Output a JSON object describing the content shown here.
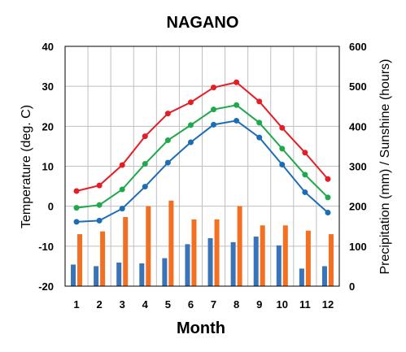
{
  "chart_data": {
    "type": "line",
    "title": "NAGANO",
    "xlabel": "Month",
    "ylabel_left": "Temperature (deg. C)",
    "ylabel_right": "Precipitation (mm) / Sunshine (hours)",
    "categories": [
      "1",
      "2",
      "3",
      "4",
      "5",
      "6",
      "7",
      "8",
      "9",
      "10",
      "11",
      "12"
    ],
    "ylim_left": [
      -20,
      40
    ],
    "yticks_left": [
      -20,
      -10,
      0,
      10,
      20,
      30,
      40
    ],
    "ylim_right": [
      0,
      600
    ],
    "yticks_right": [
      0,
      100,
      200,
      300,
      400,
      500,
      600
    ],
    "grid": true,
    "line_series": [
      {
        "color": "#e41e26",
        "values": [
          3.8,
          5.2,
          10.3,
          17.5,
          23.2,
          26.0,
          29.7,
          31.0,
          26.2,
          19.6,
          13.4,
          6.8
        ]
      },
      {
        "color": "#1fa94c",
        "values": [
          -0.4,
          0.3,
          4.2,
          10.6,
          16.5,
          20.3,
          24.2,
          25.3,
          20.9,
          14.4,
          7.9,
          2.2
        ]
      },
      {
        "color": "#1c6db5",
        "values": [
          -3.9,
          -3.6,
          -0.6,
          4.9,
          10.9,
          16.0,
          20.4,
          21.4,
          17.2,
          10.4,
          3.5,
          -1.6
        ]
      }
    ],
    "bar_series": [
      {
        "color": "#3a74b8",
        "values": [
          54,
          50,
          59,
          57,
          70,
          105,
          120,
          110,
          124,
          102,
          44,
          50
        ]
      },
      {
        "color": "#f36f21",
        "values": [
          130,
          137,
          173,
          200,
          214,
          167,
          167,
          200,
          152,
          152,
          139,
          130
        ]
      }
    ]
  }
}
